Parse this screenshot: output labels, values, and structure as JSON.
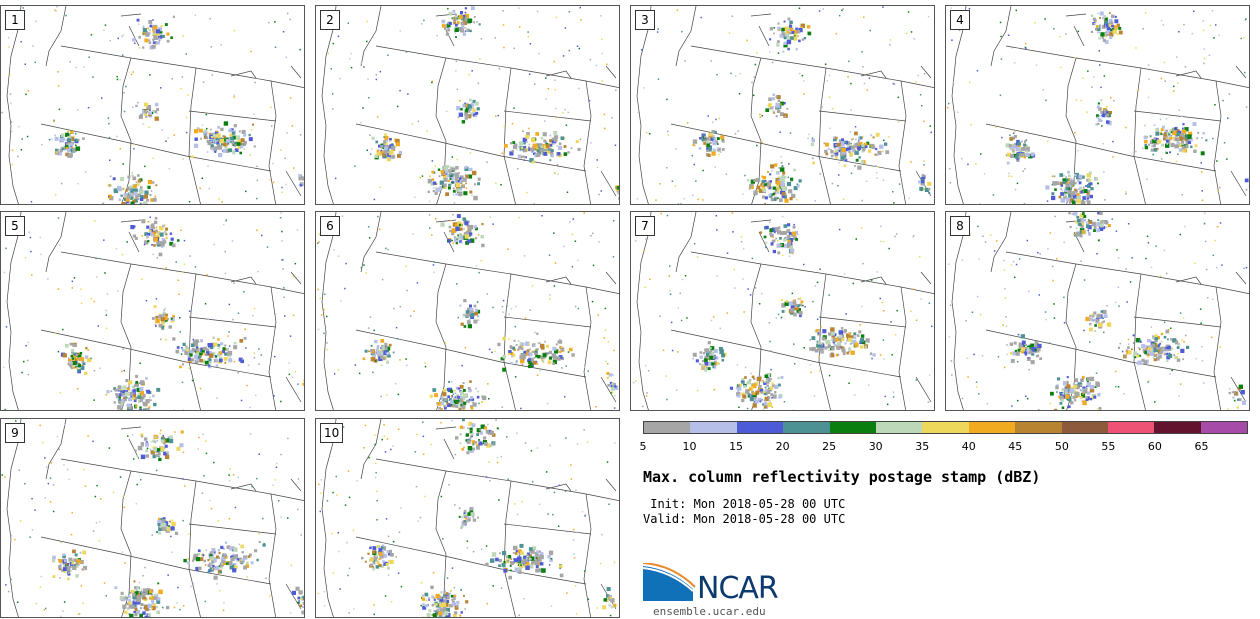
{
  "panels": [
    {
      "label": "1",
      "seed": 11
    },
    {
      "label": "2",
      "seed": 23
    },
    {
      "label": "3",
      "seed": 37
    },
    {
      "label": "4",
      "seed": 41
    },
    {
      "label": "5",
      "seed": 53
    },
    {
      "label": "6",
      "seed": 67
    },
    {
      "label": "7",
      "seed": 71
    },
    {
      "label": "8",
      "seed": 83
    },
    {
      "label": "9",
      "seed": 97
    },
    {
      "label": "10",
      "seed": 101
    }
  ],
  "colorbar": {
    "ticks": [
      "5",
      "10",
      "15",
      "20",
      "25",
      "30",
      "35",
      "40",
      "45",
      "50",
      "55",
      "60",
      "65"
    ],
    "colors": [
      "#a6a6a6",
      "#b5bfe8",
      "#4e5bd6",
      "#4c9193",
      "#0a7f10",
      "#bcd8b8",
      "#eed85c",
      "#f0ab20",
      "#b88432",
      "#8e5a3e",
      "#ee5376",
      "#64132e",
      "#a64ca8"
    ]
  },
  "title": "Max. column reflectivity postage stamp (dBZ)",
  "init": " Init: Mon 2018-05-28 00 UTC",
  "valid": "Valid: Mon 2018-05-28 00 UTC",
  "logo": {
    "word": "NCAR",
    "url": "ensemble.ucar.edu",
    "blue": "#0d3a6e",
    "accent": "#e88a2e"
  }
}
